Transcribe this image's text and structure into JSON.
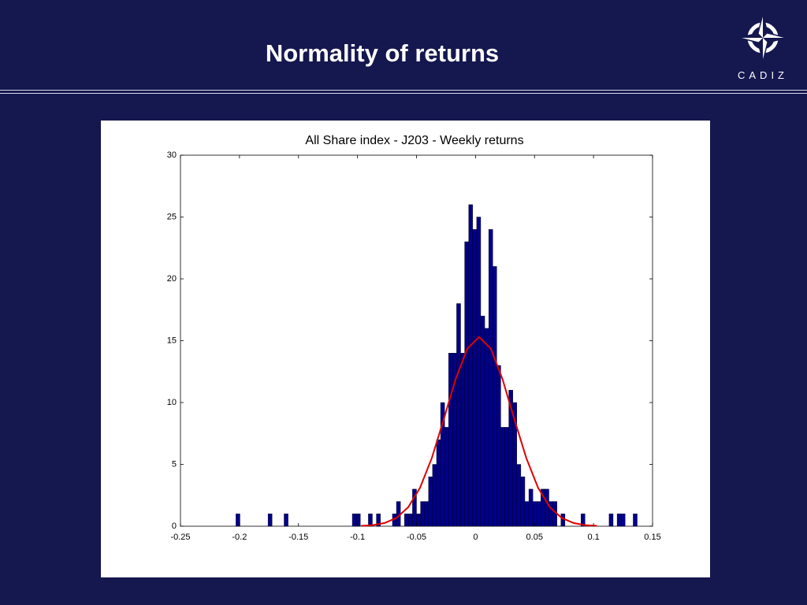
{
  "header": {
    "title": "Normality of returns",
    "logo": "CADIZ"
  },
  "chart_data": {
    "type": "histogram",
    "title": "All Share index - J203 - Weekly returns",
    "bins": [
      -0.203,
      -0.1996,
      -0.1962,
      -0.1928,
      -0.1894,
      -0.186,
      -0.1826,
      -0.1792,
      -0.1758,
      -0.1724,
      -0.169,
      -0.1656,
      -0.1622,
      -0.1588,
      -0.1554,
      -0.152,
      -0.1486,
      -0.1452,
      -0.1418,
      -0.1384,
      -0.135,
      -0.1316,
      -0.1282,
      -0.1248,
      -0.1214,
      -0.118,
      -0.1146,
      -0.1112,
      -0.1078,
      -0.1044,
      -0.101,
      -0.0976,
      -0.0942,
      -0.0908,
      -0.0874,
      -0.084,
      -0.0806,
      -0.0772,
      -0.0738,
      -0.0704,
      -0.067,
      -0.0636,
      -0.0602,
      -0.0568,
      -0.0534,
      -0.05,
      -0.0466,
      -0.0432,
      -0.0398,
      -0.0364,
      -0.033,
      -0.0296,
      -0.0262,
      -0.0228,
      -0.0194,
      -0.016,
      -0.0126,
      -0.0092,
      -0.0058,
      -0.0024,
      0.001,
      0.0044,
      0.0078,
      0.0112,
      0.0146,
      0.018,
      0.0214,
      0.0248,
      0.0282,
      0.0316,
      0.035,
      0.0384,
      0.0418,
      0.0452,
      0.0486,
      0.052,
      0.0554,
      0.0588,
      0.0622,
      0.0656,
      0.069,
      0.0724,
      0.0758,
      0.0792,
      0.0826,
      0.086,
      0.0894,
      0.0928,
      0.0962,
      0.0996,
      0.103,
      0.1064,
      0.1098,
      0.1132,
      0.1166,
      0.12,
      0.1234,
      0.1268,
      0.1302,
      0.1336,
      0.137
    ],
    "values": [
      1,
      0,
      0,
      0,
      0,
      0,
      0,
      0,
      1,
      0,
      0,
      0,
      1,
      0,
      0,
      0,
      0,
      0,
      0,
      0,
      0,
      0,
      0,
      0,
      0,
      0,
      0,
      0,
      0,
      1,
      1,
      0,
      0,
      1,
      0,
      1,
      0,
      0,
      0,
      1,
      2,
      0,
      1,
      1,
      3,
      1,
      2,
      2,
      4,
      5,
      7,
      10,
      8,
      14,
      14,
      18,
      14,
      23,
      26,
      24,
      25,
      17,
      16,
      24,
      21,
      13,
      8,
      8,
      11,
      10,
      5,
      4,
      2,
      3,
      2,
      2,
      3,
      3,
      2,
      2,
      0,
      1,
      0,
      0,
      0,
      0,
      1,
      0,
      0,
      0,
      0,
      0,
      0,
      1,
      0,
      1,
      1,
      0,
      0,
      1
    ],
    "color": "#00008b",
    "curve": {
      "type": "line",
      "color": "#e00000",
      "x": [
        -0.097,
        -0.087,
        -0.077,
        -0.067,
        -0.057,
        -0.047,
        -0.037,
        -0.027,
        -0.017,
        -0.007,
        0.003,
        0.013,
        0.023,
        0.033,
        0.043,
        0.053,
        0.063,
        0.073,
        0.083,
        0.093,
        0.103
      ],
      "values": [
        0.03,
        0.09,
        0.26,
        0.67,
        1.54,
        3.11,
        5.52,
        8.62,
        11.86,
        14.35,
        15.3,
        14.35,
        11.86,
        8.62,
        5.52,
        3.11,
        1.54,
        0.67,
        0.26,
        0.09,
        0.03
      ]
    },
    "xlim": [
      -0.25,
      0.15
    ],
    "xticks": [
      -0.25,
      -0.2,
      -0.15,
      -0.1,
      -0.05,
      0,
      0.05,
      0.1,
      0.15
    ],
    "ylim": [
      0,
      30
    ],
    "yticks": [
      0,
      5,
      10,
      15,
      20,
      25,
      30
    ],
    "grid": false
  }
}
